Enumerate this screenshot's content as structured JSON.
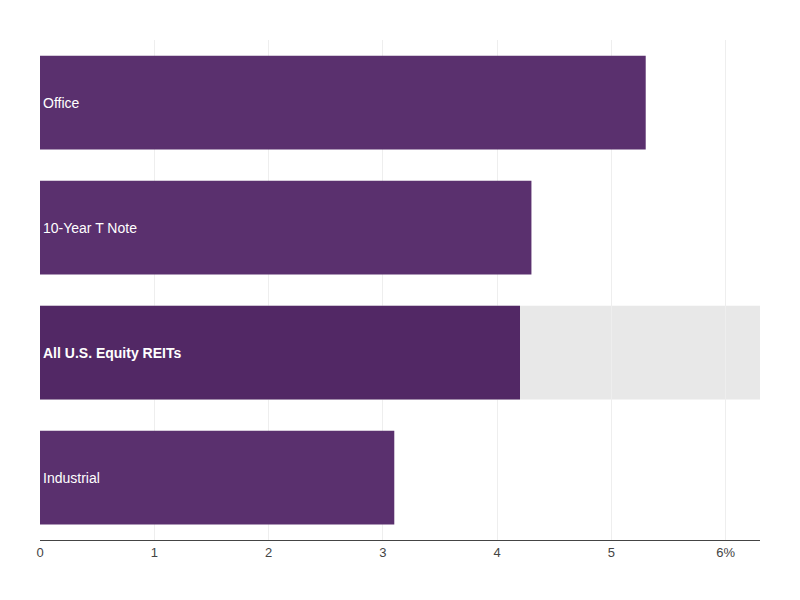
{
  "chart_data": {
    "type": "bar",
    "orientation": "horizontal",
    "categories": [
      "Office",
      "10-Year T Note",
      "All U.S. Equity REITs",
      "Industrial"
    ],
    "values": [
      5.3,
      4.3,
      4.2,
      3.1
    ],
    "colors": [
      "#5a306e",
      "#5a306e",
      "#522865",
      "#5a306e"
    ],
    "xlim": [
      0,
      6.3
    ],
    "xticks": [
      0,
      1,
      2,
      3,
      4,
      5,
      {
        "value": 6,
        "label": "6%"
      }
    ],
    "grid": true,
    "tick_labels": "x"
  }
}
